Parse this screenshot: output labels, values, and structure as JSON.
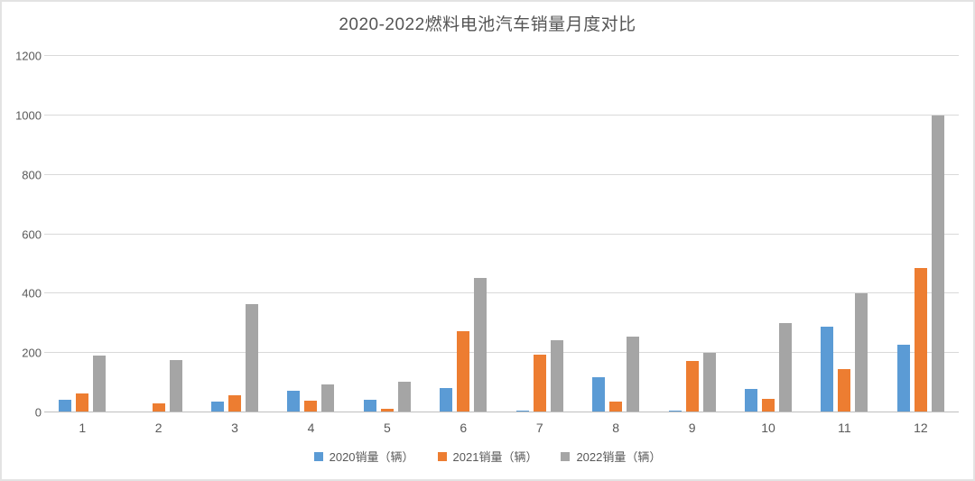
{
  "chart_data": {
    "type": "bar",
    "title": "2020-2022燃料电池汽车销量月度对比",
    "categories": [
      "1",
      "2",
      "3",
      "4",
      "5",
      "6",
      "7",
      "8",
      "9",
      "10",
      "11",
      "12"
    ],
    "series": [
      {
        "name": "2020销量（辆）",
        "color": "#5B9BD5",
        "values": [
          44,
          0,
          35,
          72,
          43,
          81,
          6,
          120,
          6,
          79,
          288,
          227
        ]
      },
      {
        "name": "2021销量（辆）",
        "color": "#ED7D31",
        "values": [
          63,
          29,
          58,
          39,
          11,
          272,
          195,
          36,
          172,
          46,
          145,
          485
        ]
      },
      {
        "name": "2022销量（辆）",
        "color": "#A5A5A5",
        "values": [
          191,
          177,
          365,
          95,
          102,
          453,
          242,
          255,
          200,
          300,
          400,
          1000
        ]
      }
    ],
    "xlabel": "",
    "ylabel": "",
    "ylim": [
      0,
      1200
    ],
    "yticks": [
      0,
      200,
      400,
      600,
      800,
      1000,
      1200
    ],
    "grid": "horizontal",
    "legend_position": "bottom"
  },
  "colors": {
    "title_text": "#555555",
    "axis_text": "#595959",
    "gridline": "#d9d9d9",
    "axis_line": "#bfbfbf",
    "frame_border": "#e3e3e3",
    "background": "#ffffff"
  }
}
